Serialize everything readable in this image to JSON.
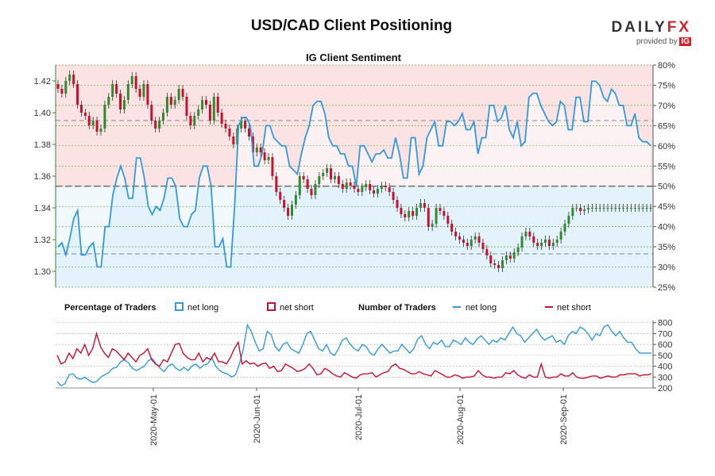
{
  "header": {
    "title": "USD/CAD Client Positioning",
    "brand_name_a": "DAILY",
    "brand_name_b": "FX",
    "brand_provided": "provided by",
    "brand_ig": "IG"
  },
  "colors": {
    "net_long": "#3399dd",
    "net_short": "#c8102e",
    "candle_up": "#2e8b2e",
    "candle_down": "#c8102e",
    "bg_short": "#fbe3e4",
    "bg_long": "#e3f2fb",
    "grid": "#66aa44"
  },
  "chart_data": [
    {
      "type": "candlestick+line",
      "title": "IG Client Sentiment",
      "left_axis": {
        "ylim": [
          1.29,
          1.43
        ],
        "ticks": [
          1.3,
          1.32,
          1.34,
          1.36,
          1.38,
          1.4,
          1.42
        ],
        "tick_labels": [
          "1.30",
          "1.32",
          "1.34",
          "1.36",
          "1.38",
          "1.40",
          "1.42"
        ]
      },
      "right_axis": {
        "ylim": [
          25,
          80
        ],
        "ticks": [
          25,
          30,
          35,
          40,
          45,
          50,
          55,
          60,
          65,
          70,
          75,
          80
        ],
        "tick_labels": [
          "25%",
          "30%",
          "35%",
          "40%",
          "45%",
          "50%",
          "55%",
          "60%",
          "65%",
          "70%",
          "75%",
          "80%"
        ],
        "reference_line": 50
      },
      "reference_lines_price": [
        1.395,
        1.311
      ],
      "net_long_pct": [
        35,
        36,
        33,
        37,
        42,
        44,
        33,
        33,
        35,
        36,
        30,
        30,
        40,
        40,
        48,
        52,
        55,
        52,
        47,
        47,
        57,
        57,
        52,
        45,
        43,
        45,
        44,
        47,
        52,
        52,
        50,
        42,
        40,
        40,
        43,
        44,
        52,
        55,
        55,
        50,
        35,
        35,
        37,
        30,
        30,
        45,
        65,
        67,
        67,
        65,
        55,
        55,
        58,
        65,
        65,
        62,
        61,
        60,
        60,
        55,
        54,
        53,
        58,
        62,
        65,
        70,
        71,
        71,
        68,
        62,
        60,
        60,
        58,
        58,
        55,
        55,
        50,
        60,
        60,
        58,
        56,
        58,
        58,
        59,
        57,
        57,
        62,
        58,
        52,
        52,
        62,
        62,
        53,
        55,
        62,
        64,
        66,
        60,
        60,
        66,
        66,
        65,
        66,
        68,
        64,
        64,
        66,
        58,
        62,
        62,
        70,
        70,
        66,
        67,
        70,
        64,
        62,
        66,
        60,
        61,
        72,
        73,
        73,
        70,
        68,
        66,
        65,
        66,
        71,
        70,
        64,
        64,
        72,
        72,
        66,
        66,
        76,
        76,
        75,
        72,
        71,
        74,
        73,
        70,
        70,
        65,
        65,
        68,
        62,
        61,
        61,
        60
      ],
      "price_ohlc_close": [
        1.415,
        1.412,
        1.42,
        1.424,
        1.418,
        1.405,
        1.4,
        1.398,
        1.392,
        1.395,
        1.388,
        1.39,
        1.405,
        1.41,
        1.418,
        1.412,
        1.402,
        1.408,
        1.418,
        1.423,
        1.415,
        1.41,
        1.418,
        1.405,
        1.395,
        1.39,
        1.395,
        1.4,
        1.41,
        1.405,
        1.408,
        1.415,
        1.41,
        1.398,
        1.392,
        1.398,
        1.402,
        1.408,
        1.405,
        1.395,
        1.41,
        1.4,
        1.393,
        1.39,
        1.385,
        1.38,
        1.39,
        1.395,
        1.39,
        1.385,
        1.375,
        1.378,
        1.375,
        1.37,
        1.372,
        1.36,
        1.35,
        1.345,
        1.34,
        1.335,
        1.342,
        1.348,
        1.36,
        1.358,
        1.352,
        1.348,
        1.355,
        1.36,
        1.362,
        1.365,
        1.358,
        1.36,
        1.355,
        1.352,
        1.356,
        1.354,
        1.352,
        1.35,
        1.353,
        1.355,
        1.351,
        1.349,
        1.352,
        1.354,
        1.353,
        1.35,
        1.345,
        1.34,
        1.336,
        1.334,
        1.338,
        1.335,
        1.34,
        1.343,
        1.34,
        1.328,
        1.33,
        1.34,
        1.338,
        1.335,
        1.33,
        1.325,
        1.322,
        1.32,
        1.318,
        1.316,
        1.32,
        1.322,
        1.318,
        1.314,
        1.31,
        1.305,
        1.304,
        1.302,
        1.307,
        1.31,
        1.308,
        1.312,
        1.315,
        1.322,
        1.325,
        1.322,
        1.318,
        1.316,
        1.318,
        1.32,
        1.316,
        1.318,
        1.32,
        1.325,
        1.33,
        1.335,
        1.34,
        1.34,
        1.338,
        1.339,
        1.34,
        1.34,
        1.34,
        1.34,
        1.34,
        1.34,
        1.34,
        1.34,
        1.34,
        1.34,
        1.34,
        1.34,
        1.34,
        1.34,
        1.34,
        1.34,
        1.34
      ]
    },
    {
      "type": "line",
      "title": "",
      "legend_left_title": "Percentage of Traders",
      "legend_left": [
        "net long",
        "net short"
      ],
      "legend_right_title": "Number of Traders",
      "legend_right": [
        "net long",
        "net short"
      ],
      "y_axis": {
        "ylim": [
          200,
          820
        ],
        "ticks": [
          200,
          300,
          400,
          500,
          600,
          700,
          800
        ],
        "tick_labels": [
          "200",
          "300",
          "400",
          "500",
          "600",
          "700",
          "800"
        ]
      },
      "x_tick_labels": [
        "2020-May-01",
        "2020-Jun-01",
        "2020-Jul-01",
        "2020-Aug-01",
        "2020-Sep-01"
      ],
      "net_long_count": [
        260,
        220,
        240,
        320,
        330,
        290,
        280,
        300,
        270,
        250,
        260,
        300,
        320,
        340,
        380,
        390,
        440,
        460,
        430,
        380,
        360,
        380,
        400,
        450,
        470,
        420,
        380,
        350,
        400,
        420,
        380,
        360,
        390,
        360,
        400,
        420,
        380,
        410,
        420,
        480,
        400,
        360,
        340,
        330,
        300,
        320,
        420,
        560,
        780,
        720,
        620,
        540,
        560,
        720,
        690,
        580,
        540,
        600,
        620,
        560,
        540,
        520,
        600,
        700,
        720,
        640,
        560,
        540,
        600,
        520,
        500,
        560,
        640,
        660,
        600,
        560,
        540,
        600,
        580,
        520,
        500,
        560,
        600,
        560,
        520,
        540,
        540,
        600,
        560,
        520,
        560,
        650,
        680,
        600,
        560,
        620,
        600,
        640,
        580,
        580,
        640,
        620,
        600,
        660,
        620,
        600,
        650,
        680,
        640,
        600,
        640,
        620,
        660,
        640,
        700,
        760,
        700,
        680,
        620,
        660,
        700,
        740,
        680,
        640,
        660,
        680,
        620,
        640,
        600,
        680,
        720,
        700,
        760,
        740,
        700,
        640,
        700,
        680,
        760,
        780,
        720,
        680,
        720,
        660,
        620,
        620,
        560,
        520,
        520,
        520,
        520
      ],
      "net_short_count": [
        500,
        420,
        440,
        520,
        470,
        560,
        520,
        600,
        500,
        560,
        700,
        580,
        520,
        480,
        560,
        540,
        500,
        460,
        520,
        480,
        440,
        500,
        520,
        560,
        460,
        420,
        400,
        460,
        440,
        520,
        600,
        610,
        520,
        480,
        460,
        460,
        520,
        440,
        480,
        460,
        520,
        440,
        440,
        420,
        480,
        560,
        620,
        420,
        450,
        420,
        430,
        400,
        420,
        430,
        380,
        400,
        350,
        360,
        420,
        400,
        380,
        350,
        360,
        380,
        420,
        380,
        320,
        330,
        380,
        360,
        330,
        310,
        300,
        340,
        320,
        300,
        290,
        320,
        330,
        330,
        340,
        300,
        320,
        340,
        350,
        400,
        420,
        380,
        370,
        350,
        330,
        330,
        350,
        330,
        320,
        310,
        360,
        340,
        320,
        300,
        300,
        320,
        310,
        290,
        300,
        300,
        310,
        360,
        320,
        300,
        300,
        290,
        300,
        300,
        340,
        330,
        360,
        320,
        300,
        290,
        320,
        300,
        300,
        420,
        300,
        290,
        300,
        300,
        330,
        310,
        310,
        340,
        300,
        290,
        290,
        300,
        310,
        310,
        290,
        300,
        310,
        300,
        300,
        320,
        320,
        330,
        330,
        330,
        310,
        320,
        320,
        330
      ]
    }
  ],
  "top_axis_tick_labels": []
}
